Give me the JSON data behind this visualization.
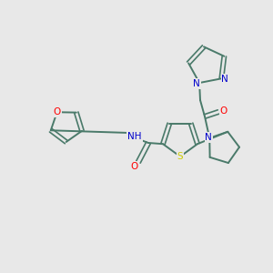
{
  "bg_color": "#e8e8e8",
  "bond_color": "#4a7a6a",
  "atom_colors": {
    "O": "#ff0000",
    "N": "#0000cc",
    "S": "#cccc00",
    "H": "#4a7a6a",
    "C": "#4a7a6a"
  },
  "figsize": [
    3.0,
    3.0
  ],
  "dpi": 100
}
